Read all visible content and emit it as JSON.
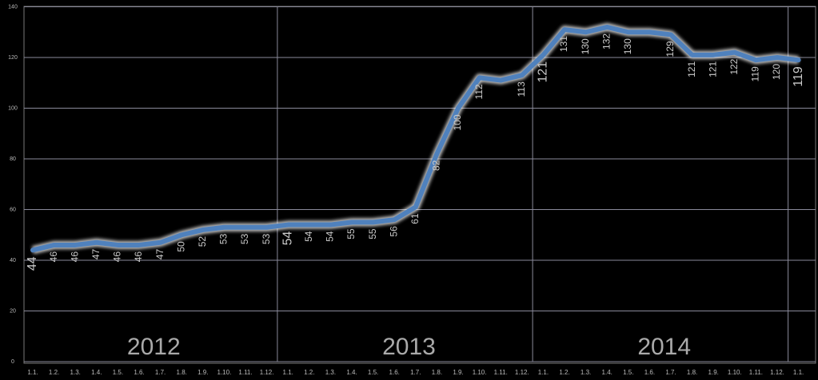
{
  "chart_data": {
    "type": "line",
    "categories": [
      "1.1.",
      "1.2.",
      "1.3.",
      "1.4.",
      "1.5.",
      "1.6.",
      "1.7.",
      "1.8.",
      "1.9.",
      "1.10.",
      "1.11.",
      "1.12.",
      "1.1.",
      "1.2.",
      "1.3.",
      "1.4.",
      "1.5.",
      "1.6.",
      "1.7.",
      "1.8.",
      "1.9.",
      "1.10.",
      "1.11.",
      "1.12.",
      "1.1.",
      "1.2.",
      "1.3.",
      "1.4.",
      "1.5.",
      "1.6.",
      "1.7.",
      "1.8.",
      "1.9.",
      "1.10.",
      "1.11.",
      "1.12.",
      "1.1."
    ],
    "values": [
      44,
      46,
      46,
      47,
      46,
      46,
      47,
      50,
      52,
      53,
      53,
      53,
      54,
      54,
      54,
      55,
      55,
      56,
      61,
      82,
      100,
      112,
      111,
      113,
      121,
      131,
      130,
      132,
      130,
      130,
      129,
      121,
      121,
      122,
      119,
      120,
      119
    ],
    "value_labels": [
      "44",
      "46",
      "46",
      "47",
      "46",
      "46",
      "47",
      "50",
      "52",
      "53",
      "53",
      "53",
      "54",
      "54",
      "54",
      "55",
      "55",
      "56",
      "61",
      "82",
      "100",
      "112",
      null,
      "113",
      "121",
      "131",
      "130",
      "132",
      "130",
      null,
      "129",
      "121",
      "121",
      "122",
      "119",
      "120",
      "119"
    ],
    "color": "#4f81bd",
    "year_labels": [
      "2012",
      "2013",
      "2014"
    ],
    "ylim": [
      0,
      140
    ],
    "yticks": [
      0,
      20,
      40,
      60,
      80,
      100,
      120,
      140
    ],
    "grid": true
  }
}
